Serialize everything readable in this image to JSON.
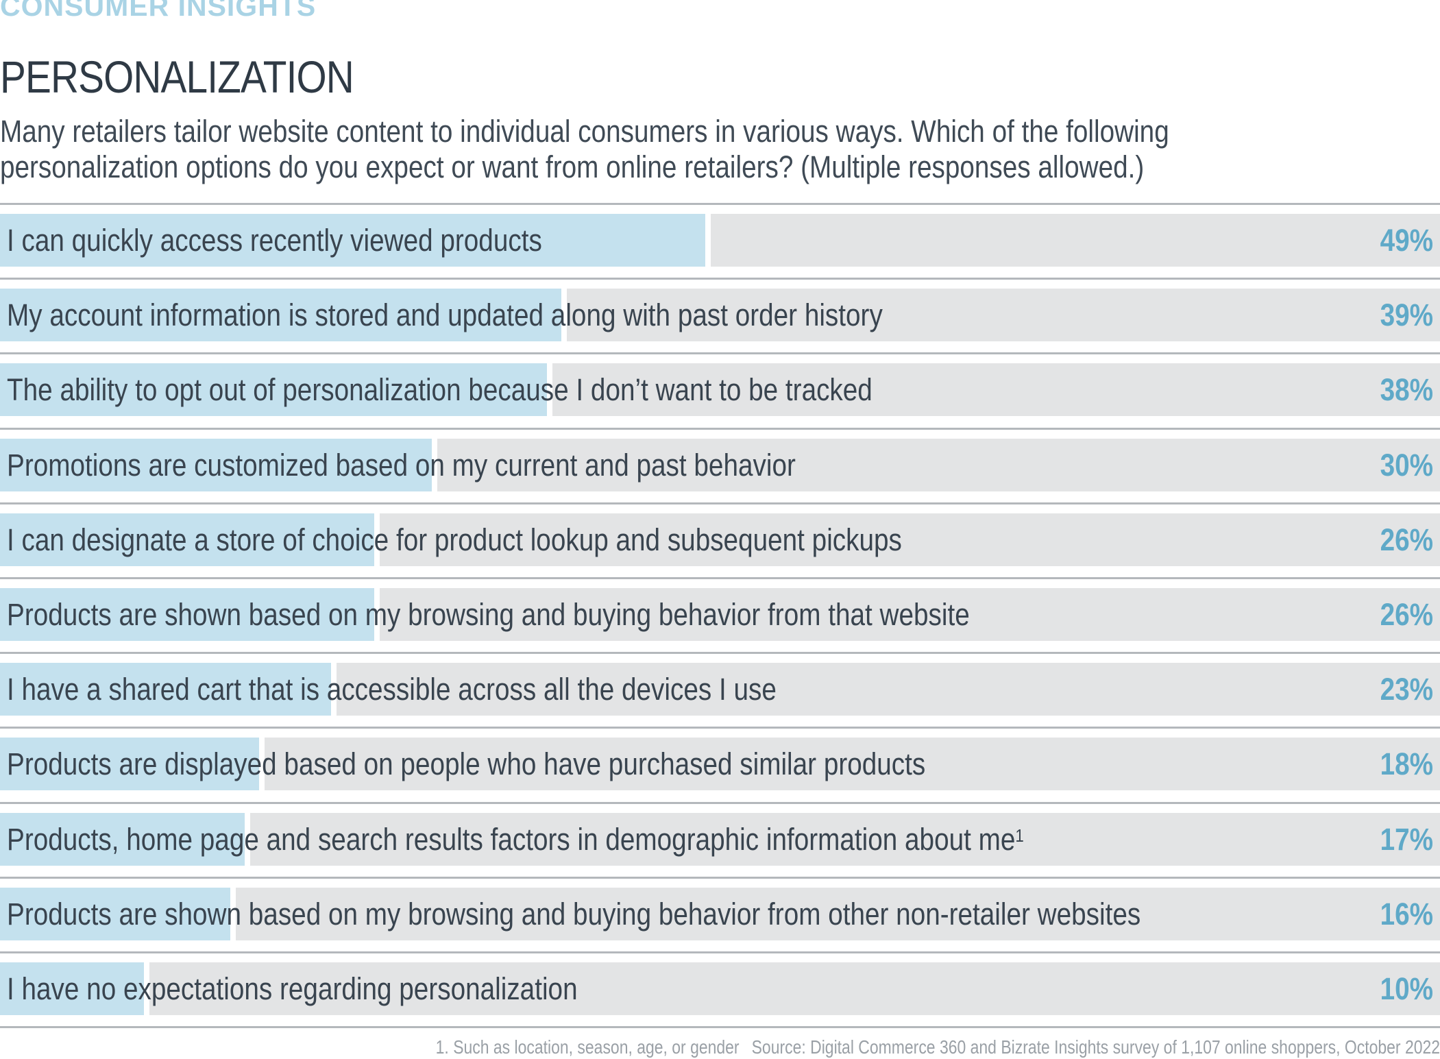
{
  "header": {
    "kicker": "CONSUMER INSIGHTS",
    "title": "PERSONALIZATION",
    "subtitle_line1": "Many retailers tailor website content to individual consumers in various ways. Which of the following",
    "subtitle_line2": "personalization options do you expect or want from online retailers? (Multiple responses allowed.)"
  },
  "footer": {
    "note": "1. Such as location, season, age, or gender",
    "source": "Source: Digital Commerce 360 and Bizrate Insights survey of 1,107 online shoppers, October 2022"
  },
  "colors": {
    "bar": "#c4e1ee",
    "track": "#e3e4e5",
    "value_text": "#5fa9c8",
    "kicker": "#a9d3e5"
  },
  "chart_data": {
    "type": "bar",
    "orientation": "horizontal",
    "xlim": [
      0,
      100
    ],
    "unit": "%",
    "categories": [
      "I can quickly access recently viewed products",
      "My account information is stored and updated along with past order history",
      "The ability to opt out of personalization because I don’t want to be tracked",
      "Promotions are customized based on my current and past behavior",
      "I can designate a store of choice for product lookup and subsequent pickups",
      "Products are shown based on my browsing and buying behavior from that website",
      "I have a shared cart that is accessible across all the devices I use",
      "Products are displayed based on people who have purchased similar products",
      "Products, home page and search results factors in demographic information about me",
      "Products are shown based on my browsing and buying behavior from other non-retailer websites",
      "I have no expectations regarding personalization"
    ],
    "footnote_marks": [
      "",
      "",
      "",
      "",
      "",
      "",
      "",
      "",
      "1",
      "",
      ""
    ],
    "values": [
      49,
      39,
      38,
      30,
      26,
      26,
      23,
      18,
      17,
      16,
      10
    ],
    "value_labels": [
      "49%",
      "39%",
      "38%",
      "30%",
      "26%",
      "26%",
      "23%",
      "18%",
      "17%",
      "16%",
      "10%"
    ]
  }
}
